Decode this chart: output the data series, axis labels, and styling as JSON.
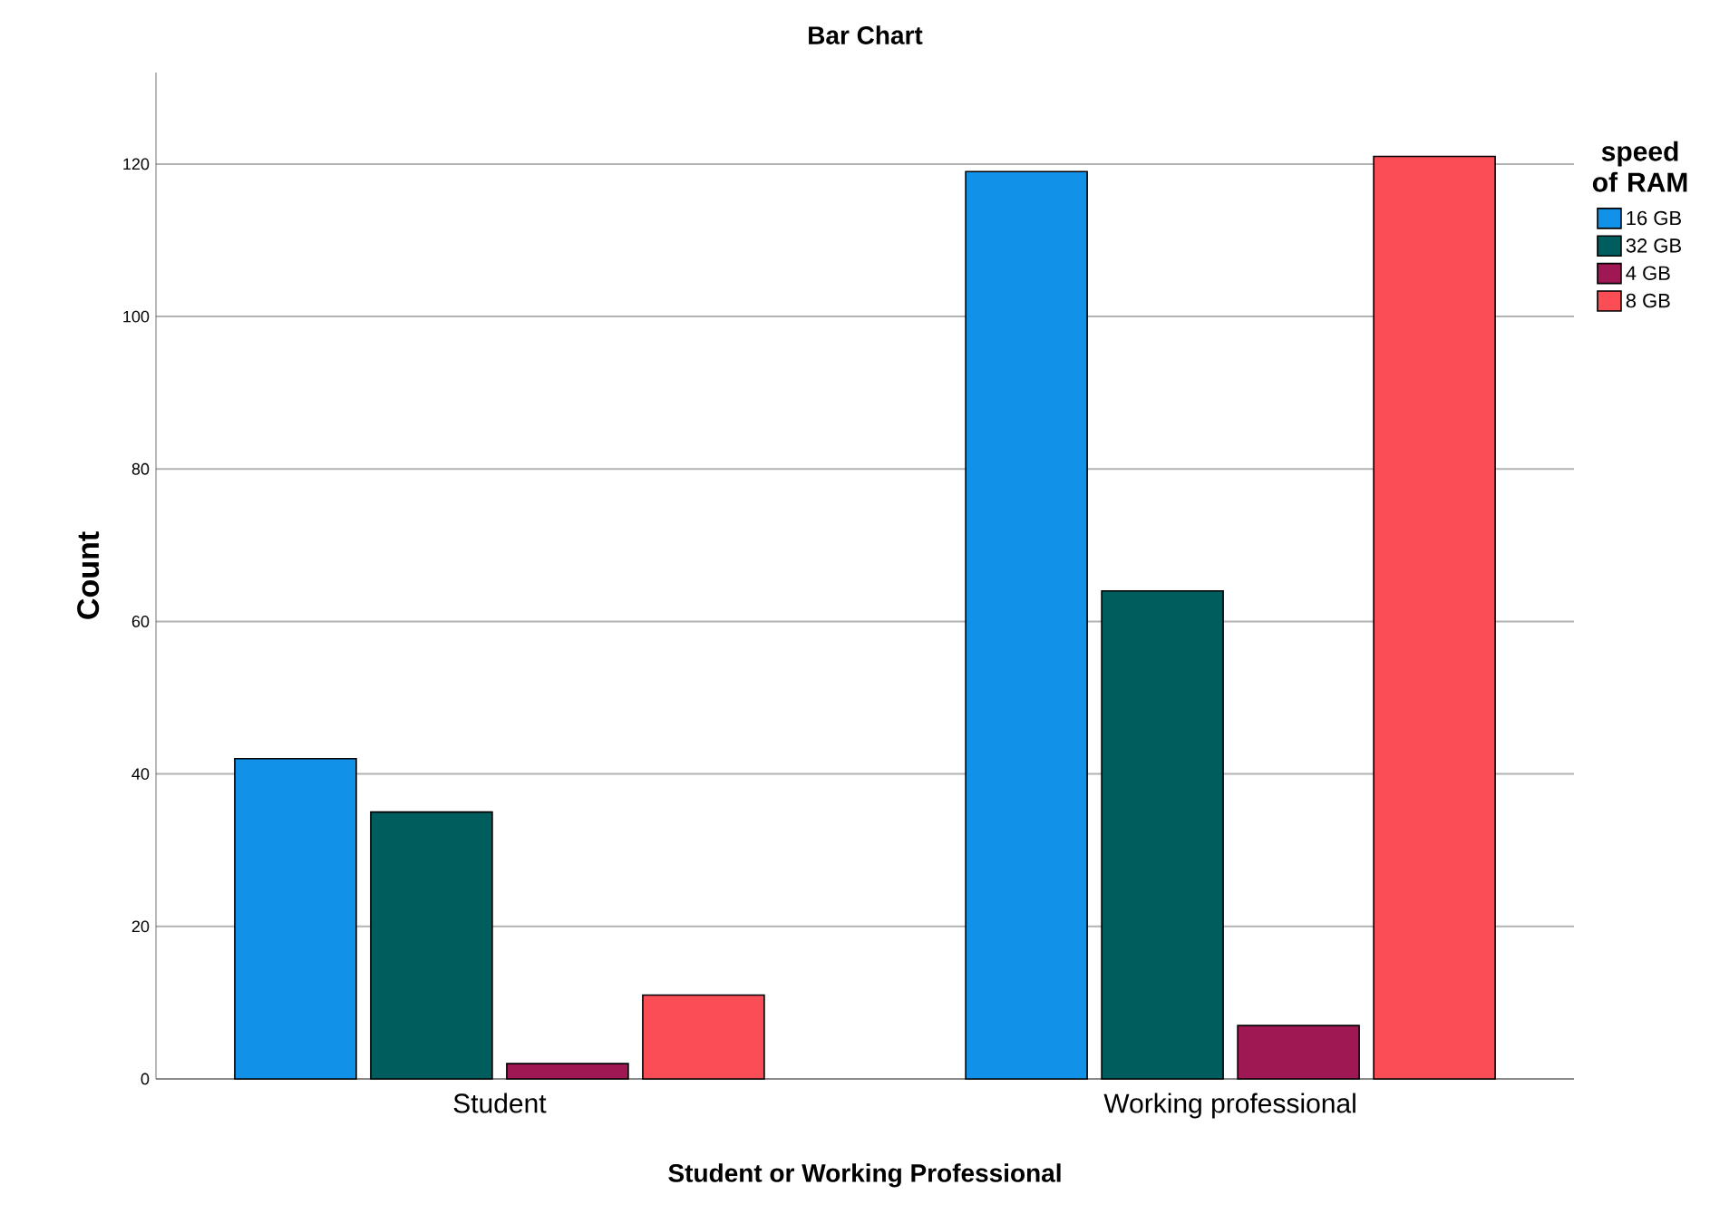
{
  "chart_data": {
    "type": "bar",
    "title": "Bar Chart",
    "xlabel": "Student or Working Professional",
    "ylabel": "Count",
    "legend_title": "speed of RAM",
    "categories": [
      "Student",
      "Working professional"
    ],
    "series": [
      {
        "name": "16 GB",
        "color": "#1192e8",
        "values": [
          42,
          119
        ]
      },
      {
        "name": "32 GB",
        "color": "#005d5d",
        "values": [
          35,
          64
        ]
      },
      {
        "name": "4 GB",
        "color": "#9f1853",
        "values": [
          2,
          7
        ]
      },
      {
        "name": "8 GB",
        "color": "#fa4d56",
        "values": [
          11,
          121
        ]
      }
    ],
    "ylim": [
      0,
      132
    ],
    "yticks": [
      0,
      20,
      40,
      60,
      80,
      100,
      120
    ],
    "grid": "y",
    "legend": "right"
  }
}
